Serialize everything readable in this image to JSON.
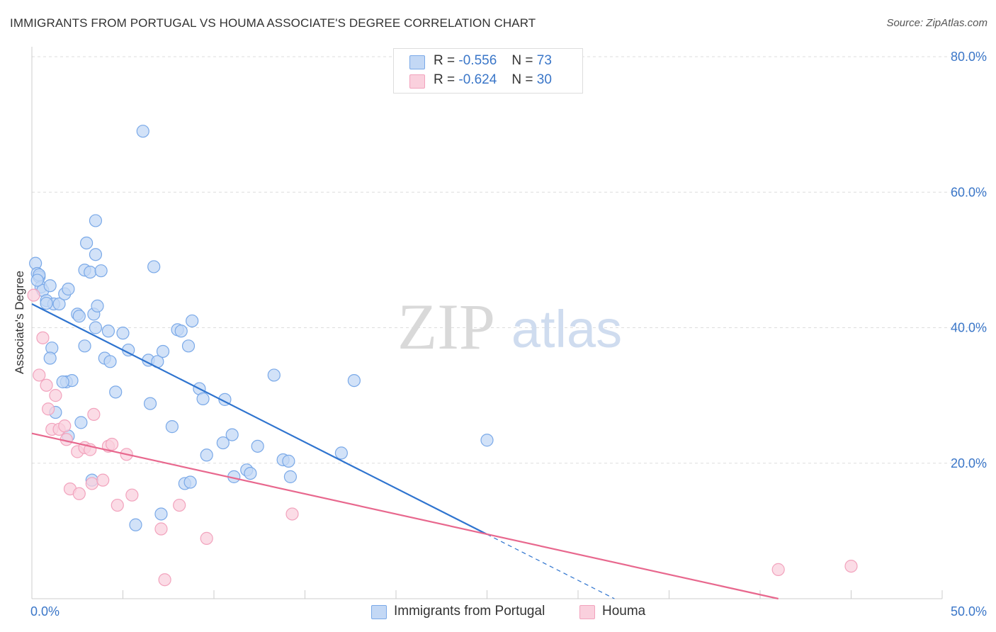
{
  "title": "IMMIGRANTS FROM PORTUGAL VS HOUMA ASSOCIATE'S DEGREE CORRELATION CHART",
  "source": "Source: ZipAtlas.com",
  "watermark": {
    "zip": "ZIP",
    "atlas": "atlas"
  },
  "legend": {
    "r_label": "R =",
    "n_label": "N =",
    "series": [
      {
        "r": "-0.556",
        "n": "73"
      },
      {
        "r": "-0.624",
        "n": "30"
      }
    ]
  },
  "chart_data": {
    "type": "scatter",
    "title": "IMMIGRANTS FROM PORTUGAL VS HOUMA ASSOCIATE'S DEGREE CORRELATION CHART",
    "xlabel": "",
    "ylabel": "Associate's Degree",
    "xlim": [
      0,
      50
    ],
    "ylim": [
      0,
      80
    ],
    "x_tick_labels": [
      "0.0%",
      "50.0%"
    ],
    "y_tick_labels": [
      "20.0%",
      "40.0%",
      "60.0%",
      "80.0%"
    ],
    "y_ticks": [
      20,
      40,
      60,
      80
    ],
    "grid": "horizontal dashed",
    "legend_placement": "top-center and bottom",
    "series": [
      {
        "name": "Immigrants from Portugal",
        "color": "#7aa9e8",
        "line_color": "#2f74cf",
        "trend": {
          "x1": 0.0,
          "y1": 43.5,
          "x2": 25.0,
          "y2": 9.5,
          "dashed_to": {
            "x": 32.0,
            "y": 0.0
          }
        },
        "points": [
          [
            0.2,
            49.5
          ],
          [
            0.3,
            48.0
          ],
          [
            0.4,
            47.5
          ],
          [
            0.5,
            46.0
          ],
          [
            0.6,
            45.5
          ],
          [
            0.8,
            44.0
          ],
          [
            0.4,
            47.8
          ],
          [
            1.0,
            46.2
          ],
          [
            1.2,
            43.5
          ],
          [
            1.5,
            43.5
          ],
          [
            1.8,
            45.0
          ],
          [
            2.0,
            45.7
          ],
          [
            1.1,
            37.0
          ],
          [
            1.0,
            35.5
          ],
          [
            1.3,
            27.5
          ],
          [
            1.9,
            32.0
          ],
          [
            2.2,
            32.2
          ],
          [
            2.0,
            24.0
          ],
          [
            2.9,
            48.5
          ],
          [
            3.2,
            48.2
          ],
          [
            3.8,
            48.4
          ],
          [
            3.0,
            52.5
          ],
          [
            3.5,
            50.8
          ],
          [
            3.5,
            55.8
          ],
          [
            2.5,
            42.0
          ],
          [
            2.9,
            37.3
          ],
          [
            3.5,
            40.0
          ],
          [
            4.2,
            39.5
          ],
          [
            2.7,
            26.0
          ],
          [
            3.4,
            42.0
          ],
          [
            3.6,
            43.2
          ],
          [
            4.0,
            35.5
          ],
          [
            4.3,
            35.0
          ],
          [
            4.6,
            30.5
          ],
          [
            6.1,
            69.0
          ],
          [
            6.7,
            49.0
          ],
          [
            5.3,
            36.7
          ],
          [
            6.4,
            35.2
          ],
          [
            6.9,
            35.0
          ],
          [
            7.2,
            36.5
          ],
          [
            8.0,
            39.7
          ],
          [
            8.2,
            39.5
          ],
          [
            8.8,
            41.0
          ],
          [
            8.6,
            37.3
          ],
          [
            9.2,
            31.0
          ],
          [
            9.4,
            29.5
          ],
          [
            10.6,
            29.4
          ],
          [
            6.5,
            28.8
          ],
          [
            7.7,
            25.4
          ],
          [
            9.6,
            21.2
          ],
          [
            11.0,
            24.2
          ],
          [
            11.8,
            19.0
          ],
          [
            12.0,
            18.5
          ],
          [
            12.4,
            22.5
          ],
          [
            10.5,
            23.0
          ],
          [
            11.1,
            18.0
          ],
          [
            13.3,
            33.0
          ],
          [
            13.8,
            20.5
          ],
          [
            14.1,
            20.3
          ],
          [
            14.2,
            18.0
          ],
          [
            17.0,
            21.5
          ],
          [
            17.7,
            32.2
          ],
          [
            25.0,
            23.4
          ],
          [
            8.4,
            17.0
          ],
          [
            8.7,
            17.2
          ],
          [
            7.1,
            12.5
          ],
          [
            5.7,
            10.9
          ],
          [
            3.3,
            17.5
          ],
          [
            0.8,
            43.6
          ],
          [
            0.3,
            47.0
          ],
          [
            1.7,
            32.0
          ],
          [
            2.6,
            41.7
          ],
          [
            5.0,
            39.2
          ]
        ]
      },
      {
        "name": "Houma",
        "color": "#f2a3bd",
        "line_color": "#e8688e",
        "trend": {
          "x1": 0.0,
          "y1": 24.4,
          "x2": 41.0,
          "y2": 0.0
        },
        "points": [
          [
            0.1,
            44.8
          ],
          [
            0.4,
            33.0
          ],
          [
            0.6,
            38.5
          ],
          [
            0.8,
            31.5
          ],
          [
            0.9,
            28.0
          ],
          [
            1.1,
            25.0
          ],
          [
            1.3,
            30.0
          ],
          [
            1.5,
            25.0
          ],
          [
            1.8,
            25.5
          ],
          [
            1.9,
            23.5
          ],
          [
            2.5,
            21.7
          ],
          [
            2.9,
            22.3
          ],
          [
            3.4,
            27.2
          ],
          [
            3.2,
            22.0
          ],
          [
            4.2,
            22.5
          ],
          [
            4.4,
            22.8
          ],
          [
            5.2,
            21.3
          ],
          [
            2.1,
            16.2
          ],
          [
            2.6,
            15.5
          ],
          [
            3.3,
            17.0
          ],
          [
            3.9,
            17.5
          ],
          [
            4.7,
            13.8
          ],
          [
            5.5,
            15.3
          ],
          [
            7.1,
            10.3
          ],
          [
            7.3,
            2.8
          ],
          [
            8.1,
            13.8
          ],
          [
            9.6,
            8.9
          ],
          [
            14.3,
            12.5
          ],
          [
            41.0,
            4.3
          ],
          [
            45.0,
            4.8
          ]
        ]
      }
    ]
  }
}
